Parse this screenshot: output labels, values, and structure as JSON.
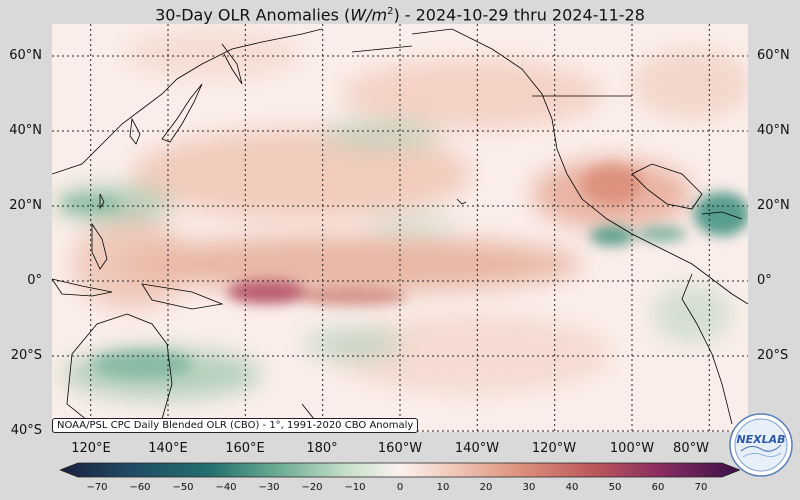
{
  "title": {
    "prefix": "30-Day OLR Anomalies (",
    "unit_base": "W/m",
    "unit_exp": "2",
    "suffix": ") - 2024-10-29 thru 2024-11-28"
  },
  "credit": "NOAA/PSL CPC Daily Blended OLR (CBO) - 1°, 1991-2020 CBO Anomaly",
  "lat_labels": [
    "60°N",
    "40°N",
    "20°N",
    "0°",
    "20°S",
    "40°S"
  ],
  "lon_labels": [
    "120°E",
    "140°E",
    "160°E",
    "180°",
    "160°W",
    "140°W",
    "120°W",
    "100°W",
    "80°W"
  ],
  "colorbar": {
    "ticks": [
      "−70",
      "−60",
      "−50",
      "−40",
      "−30",
      "−20",
      "−10",
      "0",
      "10",
      "20",
      "30",
      "40",
      "50",
      "60",
      "70"
    ],
    "colors": [
      "#1a1f3d",
      "#1f4a63",
      "#236f6e",
      "#3a8f7e",
      "#6bac92",
      "#a4cbae",
      "#d5e6d7",
      "#fbf2ef",
      "#f3d3c6",
      "#e8ab95",
      "#d8836e",
      "#bd5a5c",
      "#9b3b5f",
      "#7a2462",
      "#4a1452"
    ]
  },
  "logo": "NEXLAB",
  "map_extent": {
    "lon_min": 110,
    "lon_max": 290,
    "lat_min": -40,
    "lat_max": 67
  },
  "gridlines": {
    "lon": [
      120,
      140,
      160,
      180,
      200,
      220,
      240,
      260,
      280
    ],
    "lat": [
      60,
      40,
      20,
      0,
      -20,
      -40
    ]
  }
}
